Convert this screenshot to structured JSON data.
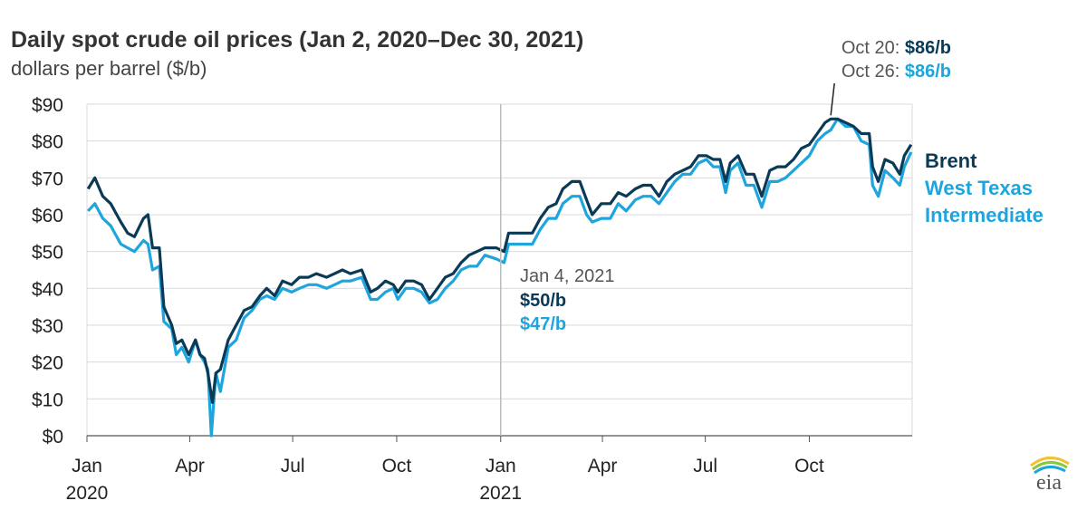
{
  "chart_data": {
    "type": "line",
    "title": "Daily spot crude oil prices (Jan 2, 2020–Dec 30, 2021)",
    "subtitle": "dollars per barrel ($/b)",
    "ylim": [
      0,
      90
    ],
    "yticks": [
      "$0",
      "$10",
      "$20",
      "$30",
      "$40",
      "$50",
      "$60",
      "$70",
      "$80",
      "$90"
    ],
    "ytick_values": [
      0,
      10,
      20,
      30,
      40,
      50,
      60,
      70,
      80,
      90
    ],
    "xlim": [
      "2020-01-01",
      "2021-12-31"
    ],
    "xticks": [
      {
        "date": "2020-01-01",
        "label": "Jan",
        "year": "2020"
      },
      {
        "date": "2020-04-01",
        "label": "Apr",
        "year": ""
      },
      {
        "date": "2020-07-01",
        "label": "Jul",
        "year": ""
      },
      {
        "date": "2020-10-01",
        "label": "Oct",
        "year": ""
      },
      {
        "date": "2021-01-01",
        "label": "Jan",
        "year": "2021"
      },
      {
        "date": "2021-04-01",
        "label": "Apr",
        "year": ""
      },
      {
        "date": "2021-07-01",
        "label": "Jul",
        "year": ""
      },
      {
        "date": "2021-10-01",
        "label": "Oct",
        "year": ""
      }
    ],
    "grid": "horizontal",
    "series": [
      {
        "name": "Brent",
        "color": "#0b3a57",
        "points": [
          [
            "2020-01-02",
            67
          ],
          [
            "2020-01-08",
            70
          ],
          [
            "2020-01-15",
            65
          ],
          [
            "2020-01-22",
            63
          ],
          [
            "2020-01-31",
            58
          ],
          [
            "2020-02-06",
            55
          ],
          [
            "2020-02-12",
            54
          ],
          [
            "2020-02-20",
            59
          ],
          [
            "2020-02-24",
            60
          ],
          [
            "2020-02-28",
            51
          ],
          [
            "2020-03-05",
            51
          ],
          [
            "2020-03-09",
            35
          ],
          [
            "2020-03-16",
            30
          ],
          [
            "2020-03-20",
            25
          ],
          [
            "2020-03-25",
            26
          ],
          [
            "2020-03-31",
            22
          ],
          [
            "2020-04-06",
            26
          ],
          [
            "2020-04-10",
            22
          ],
          [
            "2020-04-14",
            21
          ],
          [
            "2020-04-17",
            17
          ],
          [
            "2020-04-21",
            9
          ],
          [
            "2020-04-24",
            17
          ],
          [
            "2020-04-28",
            18
          ],
          [
            "2020-05-05",
            26
          ],
          [
            "2020-05-12",
            30
          ],
          [
            "2020-05-19",
            34
          ],
          [
            "2020-05-26",
            35
          ],
          [
            "2020-06-02",
            38
          ],
          [
            "2020-06-08",
            40
          ],
          [
            "2020-06-15",
            38
          ],
          [
            "2020-06-22",
            42
          ],
          [
            "2020-06-30",
            41
          ],
          [
            "2020-07-07",
            43
          ],
          [
            "2020-07-15",
            43
          ],
          [
            "2020-07-22",
            44
          ],
          [
            "2020-07-31",
            43
          ],
          [
            "2020-08-07",
            44
          ],
          [
            "2020-08-14",
            45
          ],
          [
            "2020-08-21",
            44
          ],
          [
            "2020-08-31",
            45
          ],
          [
            "2020-09-04",
            42
          ],
          [
            "2020-09-08",
            39
          ],
          [
            "2020-09-14",
            40
          ],
          [
            "2020-09-21",
            42
          ],
          [
            "2020-09-28",
            41
          ],
          [
            "2020-10-02",
            39
          ],
          [
            "2020-10-09",
            42
          ],
          [
            "2020-10-16",
            42
          ],
          [
            "2020-10-23",
            41
          ],
          [
            "2020-10-30",
            37
          ],
          [
            "2020-11-06",
            40
          ],
          [
            "2020-11-13",
            43
          ],
          [
            "2020-11-20",
            44
          ],
          [
            "2020-11-27",
            47
          ],
          [
            "2020-12-04",
            49
          ],
          [
            "2020-12-11",
            50
          ],
          [
            "2020-12-18",
            51
          ],
          [
            "2020-12-28",
            51
          ],
          [
            "2021-01-04",
            50
          ],
          [
            "2021-01-08",
            55
          ],
          [
            "2021-01-15",
            55
          ],
          [
            "2021-01-22",
            55
          ],
          [
            "2021-01-29",
            55
          ],
          [
            "2021-02-05",
            59
          ],
          [
            "2021-02-12",
            62
          ],
          [
            "2021-02-19",
            63
          ],
          [
            "2021-02-25",
            67
          ],
          [
            "2021-03-05",
            69
          ],
          [
            "2021-03-12",
            69
          ],
          [
            "2021-03-18",
            64
          ],
          [
            "2021-03-23",
            60
          ],
          [
            "2021-03-31",
            63
          ],
          [
            "2021-04-08",
            63
          ],
          [
            "2021-04-15",
            66
          ],
          [
            "2021-04-22",
            65
          ],
          [
            "2021-04-30",
            67
          ],
          [
            "2021-05-07",
            68
          ],
          [
            "2021-05-14",
            68
          ],
          [
            "2021-05-21",
            65
          ],
          [
            "2021-05-28",
            69
          ],
          [
            "2021-06-04",
            71
          ],
          [
            "2021-06-11",
            72
          ],
          [
            "2021-06-18",
            73
          ],
          [
            "2021-06-25",
            76
          ],
          [
            "2021-07-02",
            76
          ],
          [
            "2021-07-08",
            75
          ],
          [
            "2021-07-14",
            75
          ],
          [
            "2021-07-19",
            69
          ],
          [
            "2021-07-23",
            74
          ],
          [
            "2021-07-30",
            76
          ],
          [
            "2021-08-06",
            71
          ],
          [
            "2021-08-13",
            71
          ],
          [
            "2021-08-20",
            65
          ],
          [
            "2021-08-27",
            72
          ],
          [
            "2021-09-03",
            73
          ],
          [
            "2021-09-10",
            73
          ],
          [
            "2021-09-17",
            75
          ],
          [
            "2021-09-24",
            78
          ],
          [
            "2021-10-01",
            79
          ],
          [
            "2021-10-08",
            82
          ],
          [
            "2021-10-15",
            85
          ],
          [
            "2021-10-20",
            86
          ],
          [
            "2021-10-26",
            86
          ],
          [
            "2021-11-02",
            85
          ],
          [
            "2021-11-09",
            84
          ],
          [
            "2021-11-16",
            82
          ],
          [
            "2021-11-23",
            82
          ],
          [
            "2021-11-26",
            73
          ],
          [
            "2021-12-01",
            69
          ],
          [
            "2021-12-07",
            75
          ],
          [
            "2021-12-14",
            74
          ],
          [
            "2021-12-20",
            71
          ],
          [
            "2021-12-24",
            76
          ],
          [
            "2021-12-30",
            79
          ]
        ]
      },
      {
        "name": "West Texas Intermediate",
        "color": "#1ea5dd",
        "points": [
          [
            "2020-01-02",
            61
          ],
          [
            "2020-01-08",
            63
          ],
          [
            "2020-01-15",
            59
          ],
          [
            "2020-01-22",
            57
          ],
          [
            "2020-01-31",
            52
          ],
          [
            "2020-02-06",
            51
          ],
          [
            "2020-02-12",
            50
          ],
          [
            "2020-02-20",
            53
          ],
          [
            "2020-02-24",
            52
          ],
          [
            "2020-02-28",
            45
          ],
          [
            "2020-03-05",
            46
          ],
          [
            "2020-03-09",
            31
          ],
          [
            "2020-03-16",
            29
          ],
          [
            "2020-03-20",
            22
          ],
          [
            "2020-03-25",
            24
          ],
          [
            "2020-03-31",
            20
          ],
          [
            "2020-04-06",
            26
          ],
          [
            "2020-04-10",
            22
          ],
          [
            "2020-04-14",
            20
          ],
          [
            "2020-04-17",
            18
          ],
          [
            "2020-04-20",
            0
          ],
          [
            "2020-04-24",
            17
          ],
          [
            "2020-04-28",
            12
          ],
          [
            "2020-05-05",
            24
          ],
          [
            "2020-05-12",
            26
          ],
          [
            "2020-05-19",
            32
          ],
          [
            "2020-05-26",
            34
          ],
          [
            "2020-06-02",
            37
          ],
          [
            "2020-06-08",
            38
          ],
          [
            "2020-06-15",
            37
          ],
          [
            "2020-06-22",
            40
          ],
          [
            "2020-06-30",
            39
          ],
          [
            "2020-07-07",
            40
          ],
          [
            "2020-07-15",
            41
          ],
          [
            "2020-07-22",
            41
          ],
          [
            "2020-07-31",
            40
          ],
          [
            "2020-08-07",
            41
          ],
          [
            "2020-08-14",
            42
          ],
          [
            "2020-08-21",
            42
          ],
          [
            "2020-08-31",
            43
          ],
          [
            "2020-09-04",
            40
          ],
          [
            "2020-09-08",
            37
          ],
          [
            "2020-09-14",
            37
          ],
          [
            "2020-09-21",
            39
          ],
          [
            "2020-09-28",
            40
          ],
          [
            "2020-10-02",
            37
          ],
          [
            "2020-10-09",
            40
          ],
          [
            "2020-10-16",
            40
          ],
          [
            "2020-10-23",
            39
          ],
          [
            "2020-10-30",
            36
          ],
          [
            "2020-11-06",
            37
          ],
          [
            "2020-11-13",
            40
          ],
          [
            "2020-11-20",
            42
          ],
          [
            "2020-11-27",
            45
          ],
          [
            "2020-12-04",
            46
          ],
          [
            "2020-12-11",
            46
          ],
          [
            "2020-12-18",
            49
          ],
          [
            "2020-12-28",
            48
          ],
          [
            "2021-01-04",
            47
          ],
          [
            "2021-01-08",
            52
          ],
          [
            "2021-01-15",
            52
          ],
          [
            "2021-01-22",
            52
          ],
          [
            "2021-01-29",
            52
          ],
          [
            "2021-02-05",
            56
          ],
          [
            "2021-02-12",
            59
          ],
          [
            "2021-02-19",
            59
          ],
          [
            "2021-02-25",
            63
          ],
          [
            "2021-03-05",
            65
          ],
          [
            "2021-03-12",
            65
          ],
          [
            "2021-03-18",
            60
          ],
          [
            "2021-03-23",
            58
          ],
          [
            "2021-03-31",
            59
          ],
          [
            "2021-04-08",
            59
          ],
          [
            "2021-04-15",
            63
          ],
          [
            "2021-04-22",
            61
          ],
          [
            "2021-04-30",
            64
          ],
          [
            "2021-05-07",
            65
          ],
          [
            "2021-05-14",
            65
          ],
          [
            "2021-05-21",
            63
          ],
          [
            "2021-05-28",
            66
          ],
          [
            "2021-06-04",
            69
          ],
          [
            "2021-06-11",
            71
          ],
          [
            "2021-06-18",
            71
          ],
          [
            "2021-06-25",
            74
          ],
          [
            "2021-07-02",
            75
          ],
          [
            "2021-07-08",
            73
          ],
          [
            "2021-07-14",
            73
          ],
          [
            "2021-07-19",
            66
          ],
          [
            "2021-07-23",
            72
          ],
          [
            "2021-07-30",
            74
          ],
          [
            "2021-08-06",
            68
          ],
          [
            "2021-08-13",
            68
          ],
          [
            "2021-08-20",
            62
          ],
          [
            "2021-08-27",
            69
          ],
          [
            "2021-09-03",
            69
          ],
          [
            "2021-09-10",
            70
          ],
          [
            "2021-09-17",
            72
          ],
          [
            "2021-09-24",
            74
          ],
          [
            "2021-10-01",
            76
          ],
          [
            "2021-10-08",
            80
          ],
          [
            "2021-10-15",
            82
          ],
          [
            "2021-10-20",
            83
          ],
          [
            "2021-10-26",
            86
          ],
          [
            "2021-11-02",
            84
          ],
          [
            "2021-11-09",
            84
          ],
          [
            "2021-11-16",
            80
          ],
          [
            "2021-11-23",
            79
          ],
          [
            "2021-11-26",
            68
          ],
          [
            "2021-12-01",
            65
          ],
          [
            "2021-12-07",
            72
          ],
          [
            "2021-12-14",
            70
          ],
          [
            "2021-12-20",
            68
          ],
          [
            "2021-12-24",
            73
          ],
          [
            "2021-12-30",
            77
          ]
        ]
      }
    ],
    "legend": [
      {
        "label": "Brent",
        "color": "#0b3a57"
      },
      {
        "label": "West Texas",
        "color": "#1ea5dd"
      },
      {
        "label": "Intermediate",
        "color": "#1ea5dd"
      }
    ],
    "annotations": {
      "peak_brent_date": "Oct 20: ",
      "peak_brent_value": "$86/b",
      "peak_wti_date": "Oct 26: ",
      "peak_wti_value": "$86/b",
      "jan_date": "Jan 4, 2021",
      "jan_brent_value": "$50/b",
      "jan_wti_value": "$47/b"
    }
  },
  "logo": {
    "text": "eia"
  }
}
